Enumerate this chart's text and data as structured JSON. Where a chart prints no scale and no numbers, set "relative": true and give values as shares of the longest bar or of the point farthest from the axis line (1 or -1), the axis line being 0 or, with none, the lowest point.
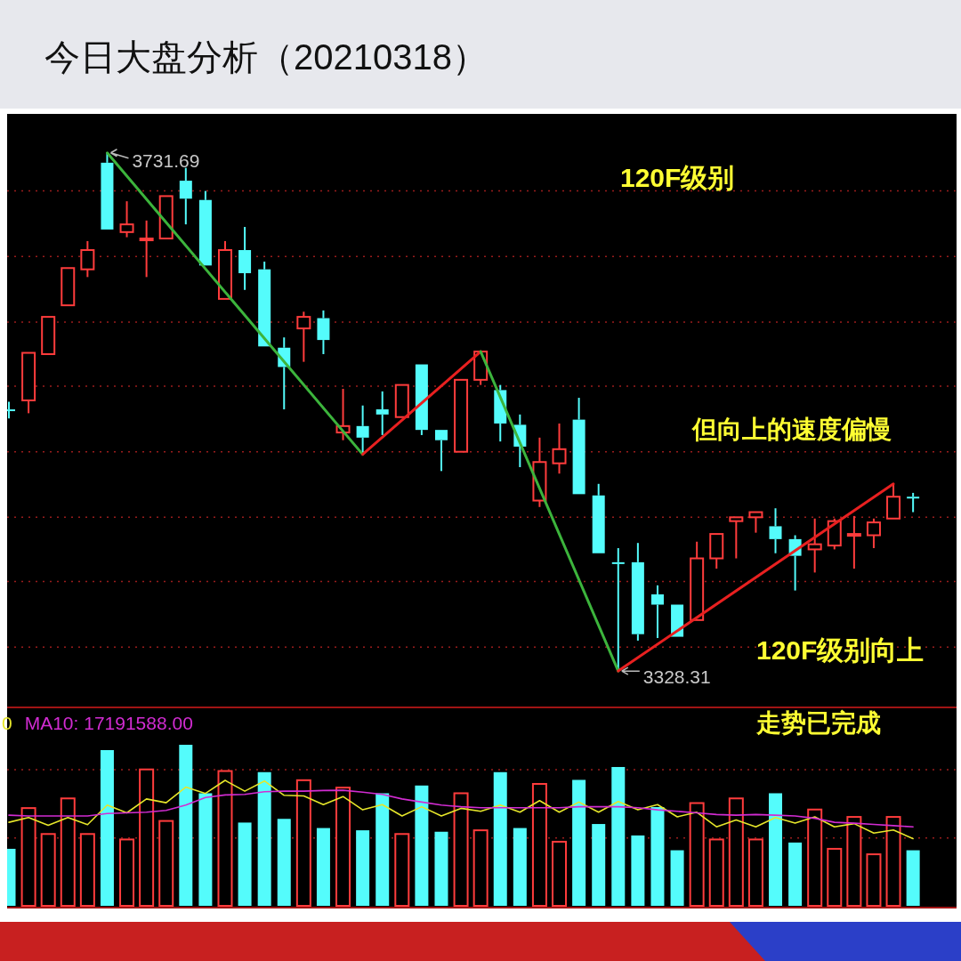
{
  "chart_data": [
    {
      "type": "candlestick",
      "title": "今日大盘分析（20210318）",
      "categories": [
        null,
        null,
        null,
        null,
        null,
        null,
        null,
        null,
        null,
        null,
        null,
        null,
        null,
        null,
        null,
        null,
        null,
        null,
        null,
        null,
        null,
        null,
        null,
        null,
        null,
        null,
        null,
        null,
        null,
        null,
        null,
        null,
        null,
        null,
        null,
        null,
        null,
        null,
        null,
        null,
        null,
        null,
        null,
        null,
        null,
        null,
        null
      ],
      "ohlc": [
        [
          3532,
          3538,
          3525,
          3531
        ],
        [
          3539,
          3576,
          3529,
          3576
        ],
        [
          3575,
          3604,
          3575,
          3604
        ],
        [
          3613,
          3642,
          3613,
          3642
        ],
        [
          3641,
          3663,
          3635,
          3656
        ],
        [
          3724,
          3731.69,
          3672,
          3672
        ],
        [
          3670,
          3694,
          3666,
          3676
        ],
        [
          3664,
          3679,
          3635,
          3665
        ],
        [
          3665,
          3698,
          3665,
          3698
        ],
        [
          3710,
          3720,
          3676,
          3696
        ],
        [
          3695,
          3702,
          3644,
          3644
        ],
        [
          3618,
          3663,
          3618,
          3656
        ],
        [
          3656,
          3674,
          3625,
          3638
        ],
        [
          3641,
          3647,
          3581,
          3581
        ],
        [
          3580,
          3588,
          3532,
          3565
        ],
        [
          3595,
          3608,
          3569,
          3604
        ],
        [
          3603,
          3609,
          3575,
          3586
        ],
        [
          3514,
          3548,
          3508,
          3519
        ],
        [
          3519,
          3535,
          3497,
          3510
        ],
        [
          3532,
          3546,
          3512,
          3528
        ],
        [
          3526,
          3551,
          3526,
          3551
        ],
        [
          3567,
          3567,
          3512,
          3516
        ],
        [
          3516,
          3516,
          3484,
          3508
        ],
        [
          3499,
          3555,
          3499,
          3555
        ],
        [
          3555,
          3577,
          3551,
          3577
        ],
        [
          3547,
          3551,
          3507,
          3521
        ],
        [
          3520,
          3528,
          3487,
          3503
        ],
        [
          3461,
          3510,
          3456,
          3491
        ],
        [
          3490,
          3521,
          3482,
          3501
        ],
        [
          3524,
          3541,
          3466,
          3466
        ],
        [
          3465,
          3474,
          3420,
          3420
        ],
        [
          3413,
          3424,
          3328.31,
          3412
        ],
        [
          3413,
          3428,
          3352,
          3357
        ],
        [
          3388,
          3395,
          3354,
          3380
        ],
        [
          3380,
          3380,
          3355,
          3355
        ],
        [
          3368,
          3429,
          3368,
          3416
        ],
        [
          3416,
          3435,
          3408,
          3435
        ],
        [
          3445,
          3448,
          3416,
          3448
        ],
        [
          3448,
          3452,
          3436,
          3452
        ],
        [
          3441,
          3455,
          3420,
          3431
        ],
        [
          3431,
          3434,
          3391,
          3418
        ],
        [
          3423,
          3447,
          3405,
          3427
        ],
        [
          3426,
          3447,
          3423,
          3445
        ],
        [
          3434,
          3449,
          3408,
          3435
        ],
        [
          3434,
          3447,
          3424,
          3444
        ],
        [
          3447,
          3474,
          3447,
          3464
        ],
        [
          3464,
          3467,
          3452,
          3463
        ]
      ],
      "colors": [
        "#54fcfc",
        "#ff3c3c",
        "#ff3c3c",
        "#ff3c3c",
        "#ff3c3c",
        "#54fcfc",
        "#ff3c3c",
        "#ff3c3c",
        "#ff3c3c",
        "#54fcfc",
        "#54fcfc",
        "#ff3c3c",
        "#54fcfc",
        "#54fcfc",
        "#54fcfc",
        "#ff3c3c",
        "#54fcfc",
        "#ff3c3c",
        "#54fcfc",
        "#54fcfc",
        "#ff3c3c",
        "#54fcfc",
        "#54fcfc",
        "#ff3c3c",
        "#ff3c3c",
        "#54fcfc",
        "#54fcfc",
        "#ff3c3c",
        "#ff3c3c",
        "#54fcfc",
        "#54fcfc",
        "#54fcfc",
        "#54fcfc",
        "#54fcfc",
        "#54fcfc",
        "#ff3c3c",
        "#ff3c3c",
        "#ff3c3c",
        "#ff3c3c",
        "#54fcfc",
        "#54fcfc",
        "#ff3c3c",
        "#ff3c3c",
        "#ff3c3c",
        "#ff3c3c",
        "#ff3c3c",
        "#54fcfc"
      ],
      "series": [
        {
          "type": "line",
          "color": "#3cb43c",
          "values": [
            null,
            null,
            null,
            null,
            null,
            3731.69,
            null,
            null,
            null,
            null,
            null,
            null,
            null,
            null,
            null,
            null,
            null,
            null,
            3497,
            null,
            null,
            null,
            null,
            null,
            null,
            null,
            null,
            null,
            null,
            null,
            null,
            null,
            null,
            null,
            null,
            null,
            null,
            null,
            null,
            null,
            null,
            null,
            null,
            null,
            null,
            null,
            null
          ]
        },
        {
          "type": "line",
          "color": "#e82020",
          "values": [
            null,
            null,
            null,
            null,
            null,
            null,
            null,
            null,
            null,
            null,
            null,
            null,
            null,
            null,
            null,
            null,
            null,
            null,
            3497,
            null,
            null,
            null,
            null,
            null,
            3577,
            null,
            null,
            null,
            null,
            null,
            null,
            null,
            null,
            null,
            null,
            null,
            null,
            null,
            null,
            null,
            null,
            null,
            null,
            null,
            null,
            null,
            null
          ]
        },
        {
          "type": "line",
          "color": "#3cb43c",
          "values": [
            null,
            null,
            null,
            null,
            null,
            null,
            null,
            null,
            null,
            null,
            null,
            null,
            null,
            null,
            null,
            null,
            null,
            null,
            null,
            null,
            null,
            null,
            null,
            null,
            3577,
            null,
            null,
            null,
            null,
            null,
            null,
            3328.31,
            null,
            null,
            null,
            null,
            null,
            null,
            null,
            null,
            null,
            null,
            null,
            null,
            null,
            null,
            null
          ]
        },
        {
          "type": "line",
          "color": "#e82020",
          "values": [
            null,
            null,
            null,
            null,
            null,
            null,
            null,
            null,
            null,
            null,
            null,
            null,
            null,
            null,
            null,
            null,
            null,
            null,
            null,
            null,
            null,
            null,
            null,
            null,
            null,
            null,
            null,
            null,
            null,
            null,
            null,
            3328.31,
            null,
            null,
            null,
            null,
            null,
            null,
            null,
            null,
            null,
            null,
            null,
            null,
            null,
            3474,
            null
          ]
        }
      ],
      "ylim": [
        3300,
        3762
      ],
      "ref_lines": [
        {
          "axis": "y",
          "value": 3702,
          "color": "#9a1c1c",
          "line_style": "dotted"
        },
        {
          "axis": "y",
          "value": 3651,
          "color": "#9a1c1c",
          "line_style": "dotted"
        },
        {
          "axis": "y",
          "value": 3600,
          "color": "#9a1c1c",
          "line_style": "dotted"
        },
        {
          "axis": "y",
          "value": 3550,
          "color": "#9a1c1c",
          "line_style": "dotted"
        },
        {
          "axis": "y",
          "value": 3499,
          "color": "#9a1c1c",
          "line_style": "dotted"
        },
        {
          "axis": "y",
          "value": 3448,
          "color": "#9a1c1c",
          "line_style": "dotted"
        },
        {
          "axis": "y",
          "value": 3398,
          "color": "#9a1c1c",
          "line_style": "dotted"
        },
        {
          "axis": "y",
          "value": 3347,
          "color": "#9a1c1c",
          "line_style": "dotted"
        }
      ],
      "annotations": [
        "3731.69",
        "3328.31",
        "120F级别",
        "但向上的速度偏慢",
        "120F级别向上",
        "走势已完成"
      ]
    },
    {
      "type": "bar",
      "relative": true,
      "categories": [
        null,
        null,
        null,
        null,
        null,
        null,
        null,
        null,
        null,
        null,
        null,
        null,
        null,
        null,
        null,
        null,
        null,
        null,
        null,
        null,
        null,
        null,
        null,
        null,
        null,
        null,
        null,
        null,
        null,
        null,
        null,
        null,
        null,
        null,
        null,
        null,
        null,
        null,
        null,
        null,
        null,
        null,
        null,
        null,
        null,
        null,
        null
      ],
      "colors": [
        "#54fcfc",
        "#ff3c3c",
        "#ff3c3c",
        "#ff3c3c",
        "#ff3c3c",
        "#54fcfc",
        "#ff3c3c",
        "#ff3c3c",
        "#ff3c3c",
        "#54fcfc",
        "#54fcfc",
        "#ff3c3c",
        "#54fcfc",
        "#54fcfc",
        "#54fcfc",
        "#ff3c3c",
        "#54fcfc",
        "#ff3c3c",
        "#54fcfc",
        "#54fcfc",
        "#ff3c3c",
        "#54fcfc",
        "#54fcfc",
        "#ff3c3c",
        "#ff3c3c",
        "#54fcfc",
        "#54fcfc",
        "#ff3c3c",
        "#ff3c3c",
        "#54fcfc",
        "#54fcfc",
        "#54fcfc",
        "#54fcfc",
        "#54fcfc",
        "#54fcfc",
        "#ff3c3c",
        "#ff3c3c",
        "#ff3c3c",
        "#ff3c3c",
        "#54fcfc",
        "#54fcfc",
        "#ff3c3c",
        "#ff3c3c",
        "#ff3c3c",
        "#ff3c3c",
        "#ff3c3c",
        "#54fcfc"
      ],
      "values": [
        0.354,
        0.607,
        0.446,
        0.667,
        0.446,
        0.967,
        0.412,
        0.847,
        0.527,
        1,
        0.699,
        0.837,
        0.517,
        0.83,
        0.54,
        0.78,
        0.483,
        0.734,
        0.469,
        0.699,
        0.446,
        0.747,
        0.46,
        0.699,
        0.469,
        0.83,
        0.483,
        0.757,
        0.398,
        0.782,
        0.508,
        0.862,
        0.437,
        0.613,
        0.345,
        0.638,
        0.412,
        0.667,
        0.412,
        0.699,
        0.393,
        0.598,
        0.354,
        0.552,
        0.32,
        0.552,
        0.345
      ],
      "ref_lines": [
        {
          "axis": "y",
          "value": 0.845,
          "color": "#9a1c1c",
          "line_style": "dotted"
        },
        {
          "axis": "y",
          "value": 0.421,
          "color": "#9a1c1c",
          "line_style": "dotted"
        }
      ]
    },
    {
      "type": "line",
      "relative": true,
      "categories": [
        null,
        null,
        null,
        null,
        null,
        null,
        null,
        null,
        null,
        null,
        null,
        null,
        null,
        null,
        null,
        null,
        null,
        null,
        null,
        null,
        null,
        null,
        null,
        null,
        null,
        null,
        null,
        null,
        null,
        null,
        null,
        null,
        null,
        null,
        null,
        null,
        null,
        null,
        null,
        null,
        null,
        null,
        null,
        null,
        null,
        null,
        null
      ],
      "series": [
        {
          "name": "0",
          "color": "#e6e62a",
          "values": [
            0.666,
            0.704,
            0.642,
            0.704,
            0.647,
            0.803,
            0.741,
            0.852,
            0.822,
            0.946,
            0.896,
            1,
            0.914,
            0.995,
            0.881,
            0.876,
            0.807,
            0.871,
            0.765,
            0.807,
            0.716,
            0.79,
            0.716,
            0.777,
            0.753,
            0.803,
            0.747,
            0.839,
            0.747,
            0.827,
            0.746,
            0.832,
            0.765,
            0.807,
            0.709,
            0.746,
            0.63,
            0.684,
            0.63,
            0.704,
            0.659,
            0.709,
            0.63,
            0.655,
            0.58,
            0.604,
            0.536
          ]
        },
        {
          "name": "MA10: 17191588.00",
          "color": "#d22cd2",
          "values": [
            0.723,
            0.716,
            0.716,
            0.716,
            0.716,
            0.736,
            0.741,
            0.747,
            0.76,
            0.803,
            0.863,
            0.884,
            0.889,
            0.909,
            0.914,
            0.914,
            0.919,
            0.921,
            0.906,
            0.889,
            0.852,
            0.827,
            0.803,
            0.79,
            0.782,
            0.782,
            0.782,
            0.782,
            0.782,
            0.79,
            0.79,
            0.79,
            0.782,
            0.765,
            0.753,
            0.741,
            0.728,
            0.723,
            0.728,
            0.723,
            0.716,
            0.698,
            0.666,
            0.659,
            0.649,
            0.639,
            0.63
          ]
        }
      ]
    }
  ]
}
